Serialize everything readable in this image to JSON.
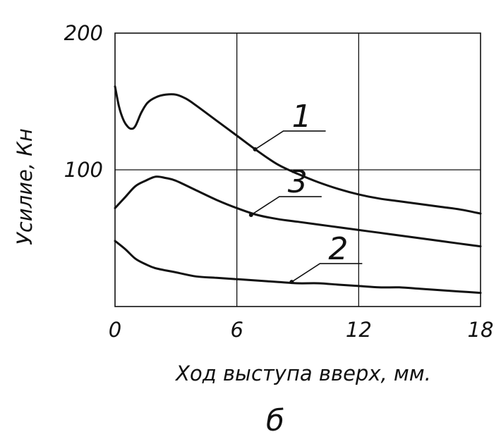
{
  "chart_data": {
    "type": "line",
    "title": "",
    "xlabel": "Ход выступа вверх, мм.",
    "ylabel": "Усилие, Кн",
    "panel_label": "б",
    "xlim": [
      0,
      18
    ],
    "ylim": [
      0,
      200
    ],
    "x_ticks": [
      "0",
      "6",
      "12",
      "18"
    ],
    "y_ticks": [
      "100",
      "200"
    ],
    "grid": true,
    "legend": "none",
    "line_color": "#111111",
    "series": [
      {
        "name": "1",
        "x": [
          0.0,
          0.2,
          0.4,
          0.6,
          0.8,
          1.0,
          1.3,
          1.6,
          2.0,
          2.5,
          3.0,
          3.5,
          4.0,
          5.0,
          6.0,
          7.0,
          8.0,
          9.0,
          10.0,
          11.0,
          12.0,
          13.0,
          14.0,
          15.0,
          16.0,
          17.0,
          18.0
        ],
        "y": [
          161,
          146,
          137,
          132,
          130,
          132,
          142,
          149,
          153,
          155,
          155,
          152,
          147,
          136,
          125,
          114,
          104,
          97,
          91,
          86,
          82,
          79,
          77,
          75,
          73,
          71,
          68
        ]
      },
      {
        "name": "3",
        "x": [
          0.0,
          0.5,
          1.0,
          1.5,
          2.0,
          2.5,
          3.0,
          4.0,
          5.0,
          6.0,
          7.0,
          8.0,
          9.0,
          10.0,
          11.0,
          12.0,
          13.0,
          14.0,
          15.0,
          16.0,
          17.0,
          18.0
        ],
        "y": [
          72,
          80,
          88,
          92,
          95,
          94,
          92,
          85,
          78,
          72,
          67,
          64,
          62,
          60,
          58,
          56,
          54,
          52,
          50,
          48,
          46,
          44
        ]
      },
      {
        "name": "2",
        "x": [
          0.0,
          0.5,
          1.0,
          1.5,
          2.0,
          3.0,
          4.0,
          5.0,
          6.0,
          7.0,
          8.0,
          9.0,
          10.0,
          11.0,
          12.0,
          13.0,
          14.0,
          15.0,
          16.0,
          17.0,
          18.0
        ],
        "y": [
          48,
          42,
          35,
          31,
          28,
          25,
          22,
          21,
          20,
          19,
          18,
          17,
          17,
          16,
          15,
          14,
          14,
          13,
          12,
          11,
          10
        ]
      }
    ],
    "labels": [
      {
        "text": "1",
        "x": 6.9,
        "y": 115
      },
      {
        "text": "3",
        "x": 6.7,
        "y": 67
      },
      {
        "text": "2",
        "x": 8.7,
        "y": 18
      }
    ]
  }
}
